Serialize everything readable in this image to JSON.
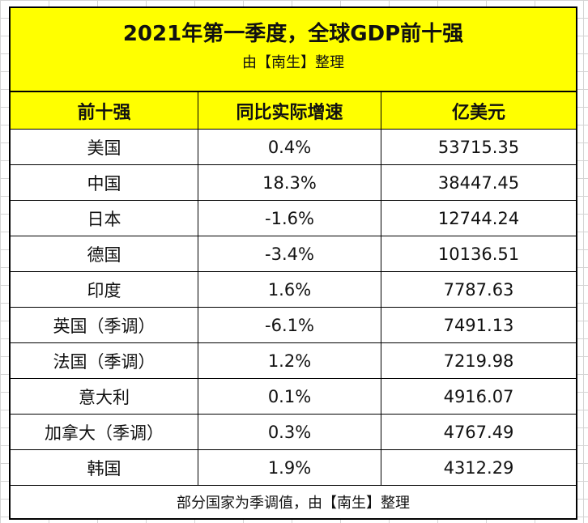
{
  "title": "2021年第一季度，全球GDP前十强",
  "subtitle": "由【南生】整理",
  "headers": [
    "前十强",
    "同比实际增速",
    "亿美元"
  ],
  "rows": [
    [
      "美国",
      "0.4%",
      "53715.35"
    ],
    [
      "中国",
      "18.3%",
      "38447.45"
    ],
    [
      "日本",
      "-1.6%",
      "12744.24"
    ],
    [
      "德国",
      "-3.4%",
      "10136.51"
    ],
    [
      "印度",
      "1.6%",
      "7787.63"
    ],
    [
      "英国（季调）",
      "-6.1%",
      "7491.13"
    ],
    [
      "法国（季调）",
      "1.2%",
      "7219.98"
    ],
    [
      "意大利",
      "0.1%",
      "4916.07"
    ],
    [
      "加拿大（季调）",
      "0.3%",
      "4767.49"
    ],
    [
      "韩国",
      "1.9%",
      "4312.29"
    ]
  ],
  "footer": "部分国家为季调值，由【南生】整理",
  "colors": {
    "header_fill": "#ffff00",
    "border": "#000000",
    "gridline": "#d4d4d4"
  }
}
